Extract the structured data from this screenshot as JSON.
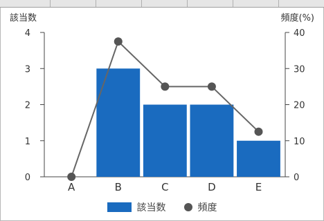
{
  "chart_data": {
    "type": "bar",
    "categories": [
      "A",
      "B",
      "C",
      "D",
      "E"
    ],
    "series": [
      {
        "name": "該当数",
        "kind": "bar",
        "axis": "left",
        "values": [
          0,
          3,
          2,
          2,
          1
        ]
      },
      {
        "name": "頻度",
        "kind": "line",
        "axis": "right",
        "values": [
          0,
          37.5,
          25,
          25,
          12.5
        ]
      }
    ],
    "ylabel_left": "該当数",
    "ylabel_right": "頻度(%)",
    "ylim_left": [
      0,
      4
    ],
    "ylim_right": [
      0,
      40
    ],
    "yticks_left": [
      "0",
      "1",
      "2",
      "3",
      "4"
    ],
    "yticks_right": [
      "0",
      "10",
      "20",
      "30",
      "40"
    ],
    "grid": false,
    "legend_position": "bottom-center",
    "colors": {
      "bar": "#1a6bbf",
      "line": "#666666",
      "marker": "#555555"
    }
  }
}
